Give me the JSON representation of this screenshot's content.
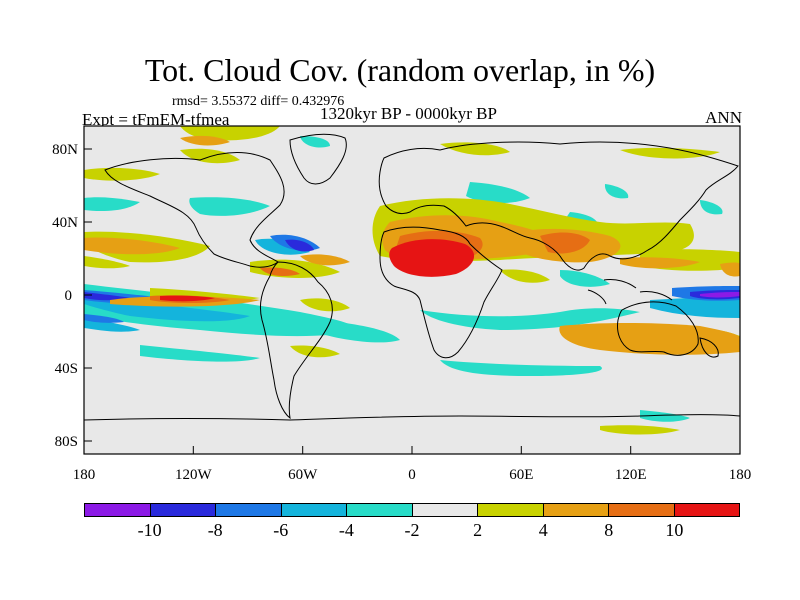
{
  "title": "Tot. Cloud Cov. (random overlap, in %)",
  "stats": "rmsd= 3.55372 diff= 0.432976",
  "period": "1320kyr BP - 0000kyr BP",
  "experiment": "Expt = tFmEM-tfmea",
  "season": "ANN",
  "axes": {
    "x_ticks": [
      "180",
      "120W",
      "60W",
      "0",
      "60E",
      "120E",
      "180"
    ],
    "y_ticks": [
      "80N",
      "40N",
      "0",
      "40S",
      "80S"
    ]
  },
  "colorbar": {
    "labels": [
      "-10",
      "-8",
      "-6",
      "-4",
      "-2",
      "2",
      "4",
      "8",
      "10"
    ],
    "colors": [
      "#8c1ae6",
      "#2a2adc",
      "#1e78e6",
      "#14b4dc",
      "#28dcc8",
      "#e8e8e8",
      "#c8d200",
      "#e6a014",
      "#e66e14",
      "#e61414"
    ]
  },
  "colors": {
    "background": "#e8e8e8",
    "coast": "#000000"
  }
}
